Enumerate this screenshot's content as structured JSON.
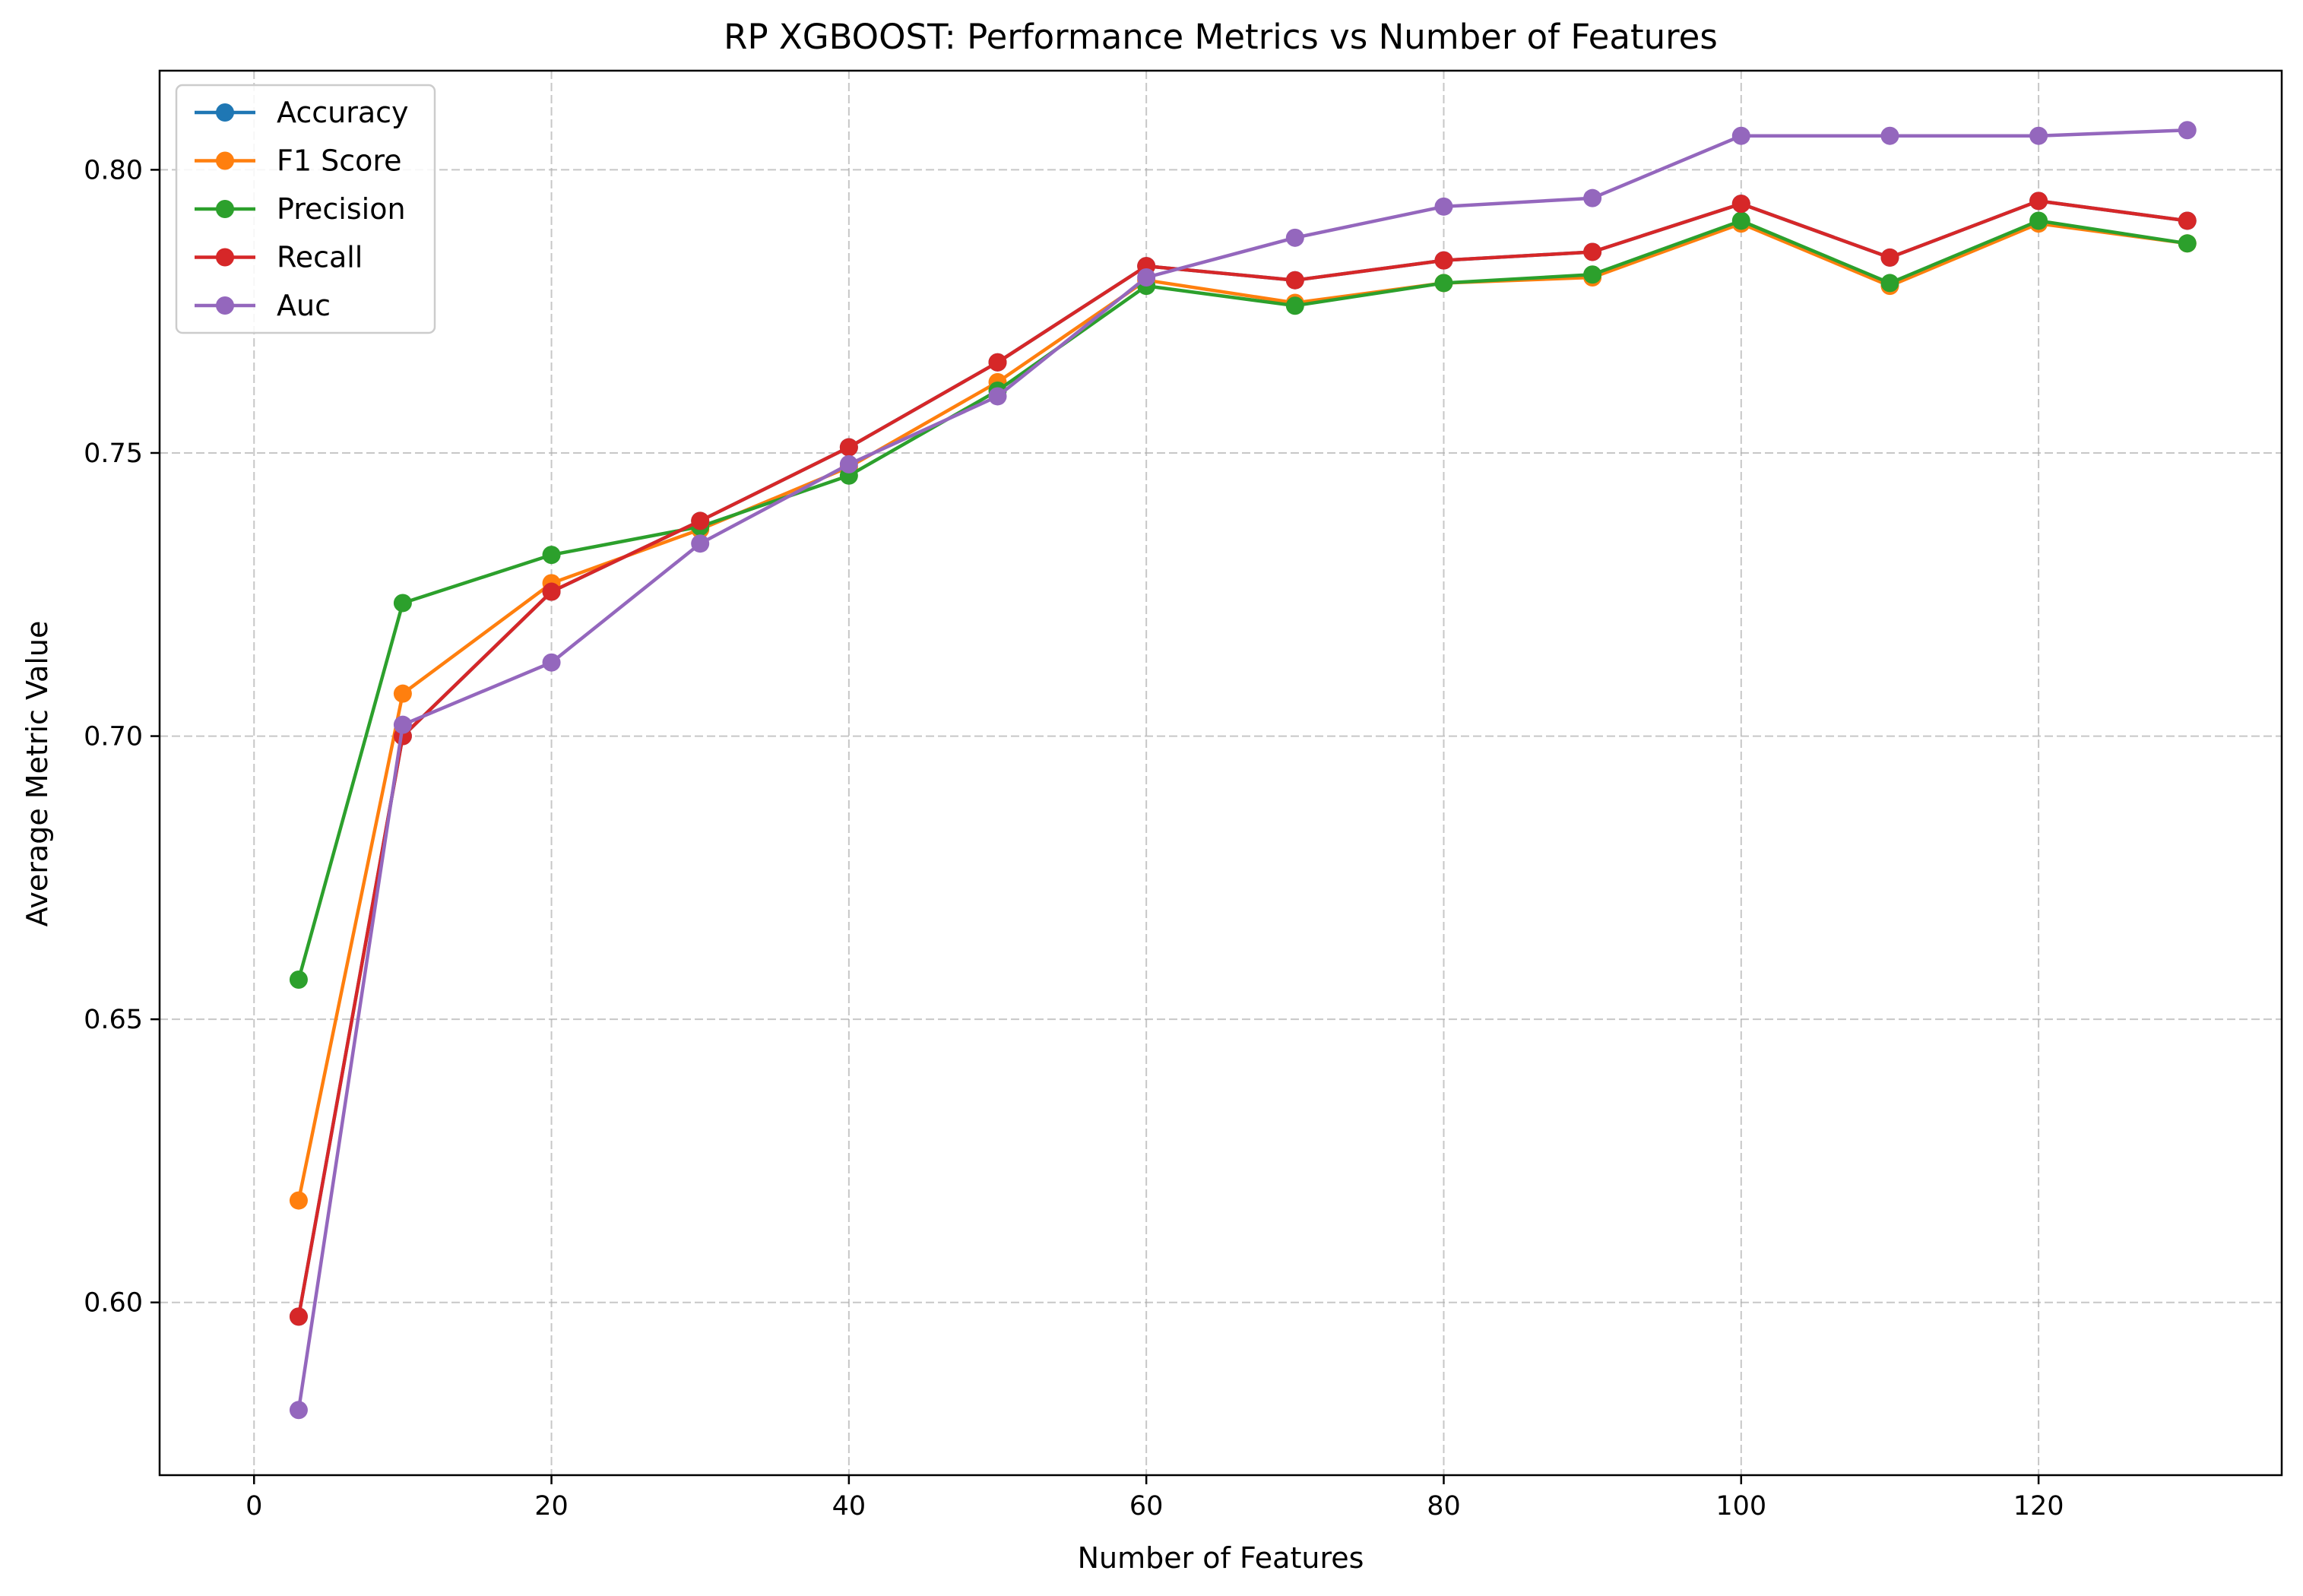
{
  "chart_data": {
    "type": "line",
    "title": "RP XGBOOST: Performance Metrics vs Number of Features",
    "xlabel": "Number of Features",
    "ylabel": "Average Metric Value",
    "xlim": [
      -6.35,
      136.35
    ],
    "ylim": [
      0.5695,
      0.8175
    ],
    "xticks": [
      0,
      20,
      40,
      60,
      80,
      100,
      120
    ],
    "xtick_labels": [
      "0",
      "20",
      "40",
      "60",
      "80",
      "100",
      "120"
    ],
    "yticks": [
      0.6,
      0.65,
      0.7,
      0.75,
      0.8
    ],
    "ytick_labels": [
      "0.60",
      "0.65",
      "0.70",
      "0.75",
      "0.80"
    ],
    "grid": true,
    "legend_position": "top-left",
    "x": [
      3,
      10,
      20,
      30,
      40,
      50,
      60,
      70,
      80,
      90,
      100,
      110,
      120,
      130
    ],
    "series": [
      {
        "name": "Accuracy",
        "color": "#1f77b4",
        "values": [
          0.5975,
          0.7,
          0.7255,
          0.738,
          0.751,
          0.766,
          0.783,
          0.7805,
          0.784,
          0.7855,
          0.794,
          0.7845,
          0.7945,
          0.791
        ]
      },
      {
        "name": "F1 Score",
        "color": "#ff7f0e",
        "values": [
          0.618,
          0.7075,
          0.727,
          0.7365,
          0.7475,
          0.7625,
          0.7805,
          0.7765,
          0.78,
          0.781,
          0.7905,
          0.7795,
          0.7905,
          0.787
        ]
      },
      {
        "name": "Precision",
        "color": "#2ca02c",
        "values": [
          0.657,
          0.7235,
          0.732,
          0.737,
          0.746,
          0.761,
          0.7795,
          0.776,
          0.78,
          0.7815,
          0.791,
          0.78,
          0.791,
          0.787
        ]
      },
      {
        "name": "Recall",
        "color": "#d62728",
        "values": [
          0.5975,
          0.7,
          0.7255,
          0.738,
          0.751,
          0.766,
          0.783,
          0.7805,
          0.784,
          0.7855,
          0.794,
          0.7845,
          0.7945,
          0.791
        ]
      },
      {
        "name": "Auc",
        "color": "#9467bd",
        "values": [
          0.581,
          0.702,
          0.713,
          0.734,
          0.748,
          0.76,
          0.781,
          0.788,
          0.7935,
          0.795,
          0.806,
          0.806,
          0.806,
          0.807
        ]
      }
    ]
  }
}
